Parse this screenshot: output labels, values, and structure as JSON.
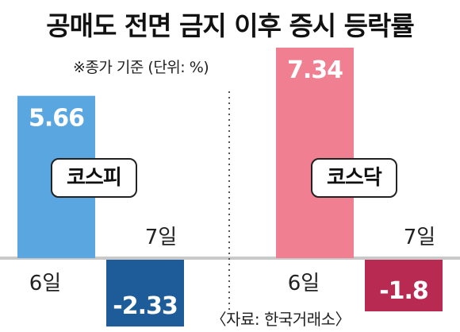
{
  "title": "공매도 전면 금지 이후 증시 등락률",
  "note": "※종가 기준 (단위: %)",
  "source": "〈자료: 한국거래소〉",
  "chart_data": {
    "type": "bar",
    "panels": [
      {
        "name": "코스피",
        "categories": [
          "6일",
          "7일"
        ],
        "values": [
          5.66,
          -2.33
        ],
        "value_labels": [
          "5.66",
          "-2.33"
        ],
        "colors": [
          "#5aa6e0",
          "#1d5c99"
        ]
      },
      {
        "name": "코스닥",
        "categories": [
          "6일",
          "7일"
        ],
        "values": [
          7.34,
          -1.8
        ],
        "value_labels": [
          "7.34",
          "-1.8"
        ],
        "colors": [
          "#ef7f91",
          "#b82a52"
        ]
      }
    ],
    "ylim": [
      -3.3,
      7.34
    ],
    "colors": {
      "baseline": "#c9c9c9",
      "divider": "#555555"
    }
  }
}
